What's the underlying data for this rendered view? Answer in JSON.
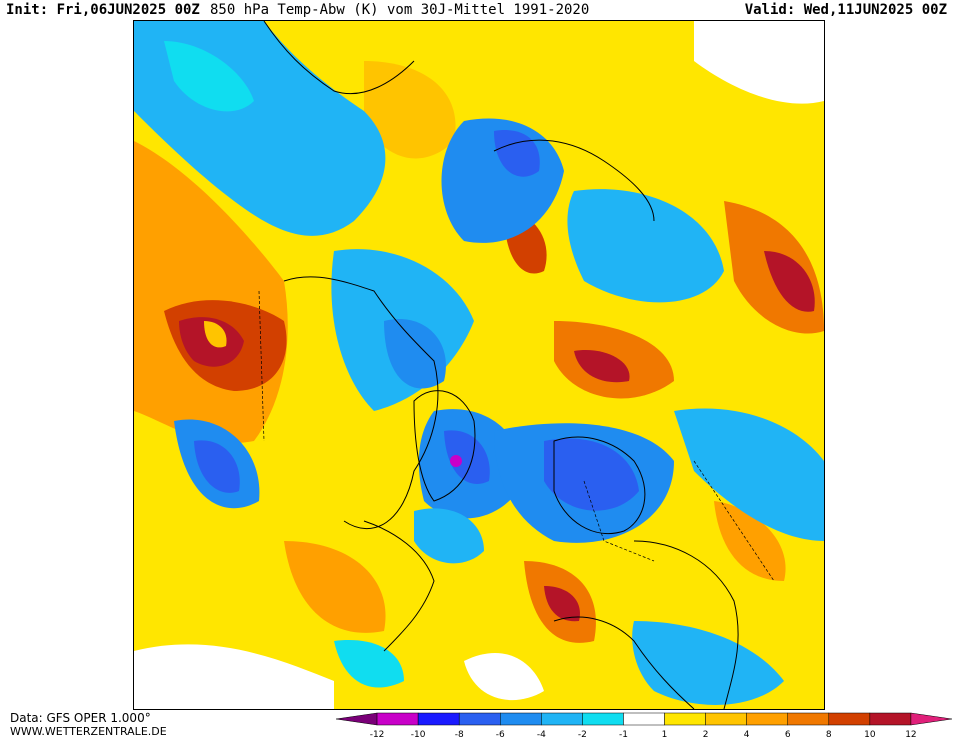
{
  "header": {
    "init": "Init: Fri,06JUN2025 00Z",
    "title": "850 hPa Temp-Abw (K) vom 30J-Mittel 1991-2020",
    "valid": "Valid: Wed,11JUN2025 00Z"
  },
  "footer": {
    "data_source": "Data: GFS OPER 1.000°",
    "website": "WWW.WETTERZENTRALE.DE"
  },
  "legend": {
    "ticks": [
      "-12",
      "-10",
      "-8",
      "-6",
      "-4",
      "-2",
      "-1",
      "1",
      "2",
      "4",
      "6",
      "8",
      "10",
      "12"
    ],
    "colors": [
      "#7a0078",
      "#c800c8",
      "#1a1aff",
      "#2a5ff0",
      "#1f8cf0",
      "#20b4f5",
      "#10ddf0",
      "#ffffff",
      "#ffe600",
      "#ffc400",
      "#ffa000",
      "#f07800",
      "#d24000",
      "#b41428",
      "#e0207a"
    ]
  },
  "map": {
    "projection": "polar-stereographic",
    "field": "850 hPa temperature anomaly (K)",
    "colors": {
      "deep_blue": "#1a3cff",
      "blue": "#1f8cf0",
      "light_blue": "#20b4f5",
      "cyan": "#10ddf0",
      "yellow": "#ffe600",
      "gold": "#ffc400",
      "orange": "#ffa000",
      "dark_orange": "#f07800",
      "maroon": "#b41428",
      "magenta": "#c800c8"
    }
  }
}
